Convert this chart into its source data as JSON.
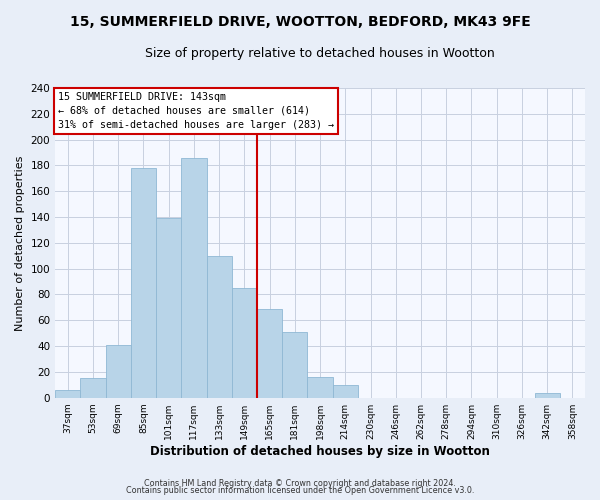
{
  "title": "15, SUMMERFIELD DRIVE, WOOTTON, BEDFORD, MK43 9FE",
  "subtitle": "Size of property relative to detached houses in Wootton",
  "xlabel": "Distribution of detached houses by size in Wootton",
  "ylabel": "Number of detached properties",
  "bar_color": "#b8d4e8",
  "bar_edge_color": "#8fb8d4",
  "bin_labels": [
    "37sqm",
    "53sqm",
    "69sqm",
    "85sqm",
    "101sqm",
    "117sqm",
    "133sqm",
    "149sqm",
    "165sqm",
    "181sqm",
    "198sqm",
    "214sqm",
    "230sqm",
    "246sqm",
    "262sqm",
    "278sqm",
    "294sqm",
    "310sqm",
    "326sqm",
    "342sqm",
    "358sqm"
  ],
  "bar_values": [
    6,
    15,
    41,
    178,
    139,
    186,
    110,
    85,
    69,
    51,
    16,
    10,
    0,
    0,
    0,
    0,
    0,
    0,
    0,
    4,
    0
  ],
  "vline_x_index": 7,
  "vline_color": "#cc0000",
  "annotation_text_line1": "15 SUMMERFIELD DRIVE: 143sqm",
  "annotation_text_line2": "← 68% of detached houses are smaller (614)",
  "annotation_text_line3": "31% of semi-detached houses are larger (283) →",
  "annotation_box_color": "white",
  "annotation_box_edge_color": "#cc0000",
  "ylim": [
    0,
    240
  ],
  "yticks": [
    0,
    20,
    40,
    60,
    80,
    100,
    120,
    140,
    160,
    180,
    200,
    220,
    240
  ],
  "footer1": "Contains HM Land Registry data © Crown copyright and database right 2024.",
  "footer2": "Contains public sector information licensed under the Open Government Licence v3.0.",
  "background_color": "#e8eef8",
  "plot_background_color": "#f5f8ff",
  "grid_color": "#c8d0e0",
  "title_fontsize": 10,
  "subtitle_fontsize": 9
}
